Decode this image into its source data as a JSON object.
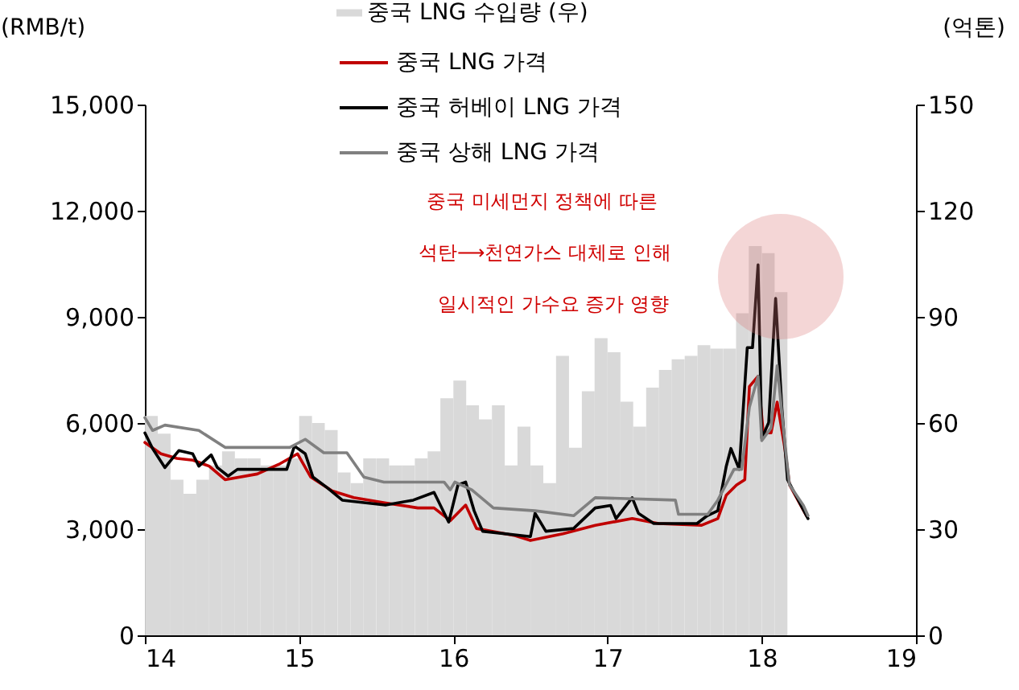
{
  "chart_data": {
    "type": "line",
    "ylabel": "(RMB/t)",
    "y2label": "(억톤)",
    "legend": "top",
    "xlim": [
      2014,
      2019
    ],
    "xticks": [
      {
        "value": 2014,
        "label": "14"
      },
      {
        "value": 2015,
        "label": "15"
      },
      {
        "value": 2016,
        "label": "16"
      },
      {
        "value": 2017,
        "label": "17"
      },
      {
        "value": 2018,
        "label": "18"
      },
      {
        "value": 2019,
        "label": "19"
      }
    ],
    "ylim": [
      0,
      15000
    ],
    "yticks": [
      {
        "value": 0,
        "label": "0"
      },
      {
        "value": 3000,
        "label": "3,000"
      },
      {
        "value": 6000,
        "label": "6,000"
      },
      {
        "value": 9000,
        "label": "9,000"
      },
      {
        "value": 12000,
        "label": "12,000"
      },
      {
        "value": 15000,
        "label": "15,000"
      }
    ],
    "y2lim": [
      0,
      150
    ],
    "y2ticks": [
      0,
      30,
      60,
      90,
      120,
      150
    ],
    "annotations": [
      "중국 미세먼지 정책에 따른",
      "석탄⟶천연가스 대체로 인해",
      "일시적인 가수요 증가 영향"
    ],
    "series": [
      {
        "name": "중국 LNG 수입량 (우)",
        "type": "bar",
        "axis": "y2",
        "color": "#d9d9d9",
        "x": [
          2014.042,
          2014.125,
          2014.208,
          2014.292,
          2014.375,
          2014.458,
          2014.542,
          2014.625,
          2014.708,
          2014.792,
          2014.875,
          2014.958,
          2015.042,
          2015.125,
          2015.208,
          2015.292,
          2015.375,
          2015.458,
          2015.542,
          2015.625,
          2015.708,
          2015.792,
          2015.875,
          2015.958,
          2016.042,
          2016.125,
          2016.208,
          2016.292,
          2016.375,
          2016.458,
          2016.542,
          2016.625,
          2016.708,
          2016.792,
          2016.875,
          2016.958,
          2017.042,
          2017.125,
          2017.208,
          2017.292,
          2017.375,
          2017.458,
          2017.542,
          2017.625,
          2017.708,
          2017.792,
          2017.875,
          2017.958,
          2018.042,
          2018.125
        ],
        "values": [
          62,
          57,
          44,
          40,
          44,
          48,
          52,
          50,
          50,
          48,
          48,
          50,
          62,
          60,
          58,
          46,
          43,
          50,
          50,
          48,
          48,
          50,
          52,
          67,
          72,
          65,
          61,
          65,
          48,
          59,
          48,
          43,
          79,
          53,
          69,
          84,
          80,
          66,
          59,
          70,
          75,
          78,
          79,
          82,
          81,
          81,
          91,
          110,
          108,
          97
        ]
      },
      {
        "name": "중국 LNG 가격",
        "type": "line",
        "color": "#c00000",
        "x": [
          2014,
          2014.104,
          2014.208,
          2014.313,
          2014.417,
          2014.52,
          2014.729,
          2014.868,
          2014.99,
          2015.076,
          2015.215,
          2015.354,
          2015.563,
          2015.77,
          2015.875,
          2015.98,
          2016.08,
          2016.15,
          2016.4,
          2016.5,
          2016.71,
          2016.92,
          2017.16,
          2017.33,
          2017.61,
          2017.715,
          2017.77,
          2017.837,
          2017.89,
          2017.92,
          2017.976,
          2018.01,
          2018.06,
          2018.1,
          2018.15,
          2018.18,
          2018.29
        ],
        "values": [
          5450,
          5130,
          5000,
          4950,
          4780,
          4400,
          4560,
          4830,
          5130,
          4470,
          4080,
          3890,
          3740,
          3600,
          3600,
          3240,
          3680,
          3020,
          2820,
          2680,
          2870,
          3110,
          3300,
          3160,
          3110,
          3300,
          3960,
          4250,
          4400,
          7030,
          7320,
          5720,
          5720,
          6590,
          5280,
          4250,
          3380
        ]
      },
      {
        "name": "중국 허베이 LNG 가격",
        "type": "line",
        "color": "#000000",
        "x": [
          2014,
          2014.05,
          2014.13,
          2014.22,
          2014.31,
          2014.35,
          2014.43,
          2014.47,
          2014.54,
          2014.6,
          2014.92,
          2014.97,
          2015.04,
          2015.09,
          2015.18,
          2015.28,
          2015.56,
          2015.74,
          2015.875,
          2015.97,
          2016.03,
          2016.08,
          2016.135,
          2016.19,
          2016.5,
          2016.53,
          2016.6,
          2016.78,
          2016.92,
          2017.02,
          2017.055,
          2017.16,
          2017.2,
          2017.3,
          2017.58,
          2017.646,
          2017.715,
          2017.77,
          2017.8,
          2017.854,
          2017.906,
          2017.94,
          2017.976,
          2018,
          2018.045,
          2018.09,
          2018.13,
          2018.167,
          2018.22,
          2018.3
        ],
        "values": [
          5720,
          5280,
          4740,
          5220,
          5130,
          4780,
          5100,
          4740,
          4500,
          4690,
          4690,
          5350,
          5130,
          4470,
          4180,
          3820,
          3680,
          3820,
          4040,
          3200,
          4250,
          4330,
          3520,
          2940,
          2790,
          3450,
          2940,
          3020,
          3600,
          3670,
          3300,
          3890,
          3450,
          3160,
          3160,
          3380,
          3520,
          4780,
          5280,
          4690,
          8130,
          8130,
          10470,
          5570,
          6010,
          9520,
          6450,
          4400,
          3960,
          3300
        ]
      },
      {
        "name": "중국 상해 LNG 가격",
        "type": "line",
        "color": "#808080",
        "x": [
          2014,
          2014.05,
          2014.13,
          2014.35,
          2014.52,
          2014.94,
          2015.04,
          2015.16,
          2015.31,
          2015.42,
          2015.55,
          2015.94,
          2015.98,
          2016.01,
          2016.12,
          2016.26,
          2016.53,
          2016.78,
          2016.92,
          2017.44,
          2017.46,
          2017.65,
          2017.715,
          2017.82,
          2017.87,
          2017.92,
          2017.976,
          2018,
          2018.06,
          2018.1,
          2018.15,
          2018.18,
          2018.27,
          2018.3
        ],
        "values": [
          6150,
          5790,
          5940,
          5790,
          5310,
          5310,
          5540,
          5160,
          5160,
          4470,
          4330,
          4330,
          4110,
          4330,
          4110,
          3600,
          3520,
          3380,
          3890,
          3820,
          3420,
          3420,
          3820,
          4690,
          4690,
          6450,
          7320,
          5500,
          5860,
          7620,
          5430,
          4250,
          3670,
          3380
        ]
      }
    ]
  }
}
